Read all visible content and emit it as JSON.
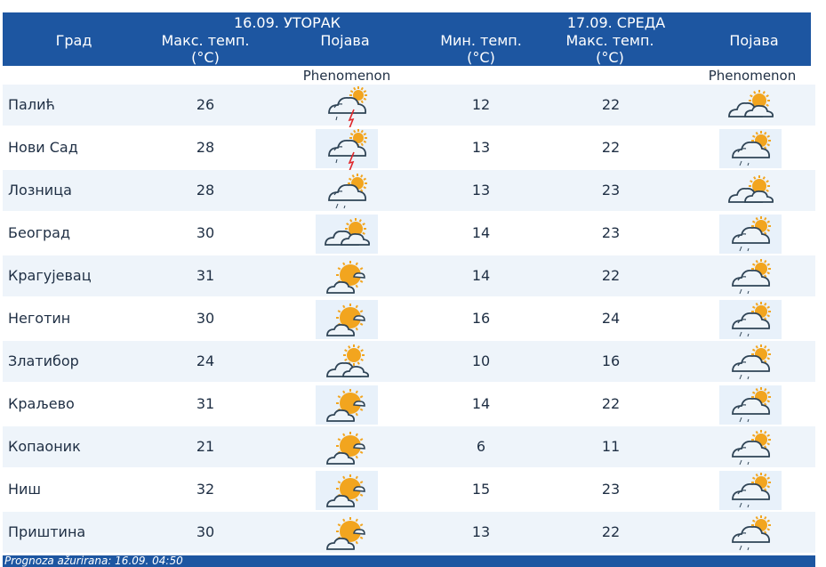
{
  "header": {
    "col_city": "Град",
    "day1_date": "16.09. УТОРАК",
    "day2_date": "17.09. СРЕДА",
    "max_temp": "Макс. темп.",
    "min_temp": "Мин. темп.",
    "unit": "(°C)",
    "phenomenon": "Појава",
    "phenomenon_en": "Phenomenon"
  },
  "rows": [
    {
      "city": "Палић",
      "d1_max": "26",
      "d1_icon": "thunderstorm-icon",
      "d2_min": "12",
      "d2_max": "22",
      "d2_icon": "partly-cloudy-icon"
    },
    {
      "city": "Нови Сад",
      "d1_max": "28",
      "d1_icon": "thunderstorm-icon",
      "d2_min": "13",
      "d2_max": "22",
      "d2_icon": "cloudy-rain-icon"
    },
    {
      "city": "Лозница",
      "d1_max": "28",
      "d1_icon": "cloudy-rain-icon",
      "d2_min": "13",
      "d2_max": "23",
      "d2_icon": "partly-cloudy-icon"
    },
    {
      "city": "Београд",
      "d1_max": "30",
      "d1_icon": "partly-cloudy-icon",
      "d2_min": "14",
      "d2_max": "23",
      "d2_icon": "cloudy-rain-icon"
    },
    {
      "city": "Крагујевац",
      "d1_max": "31",
      "d1_icon": "sunny-cloudy-icon",
      "d2_min": "14",
      "d2_max": "22",
      "d2_icon": "cloudy-rain-icon"
    },
    {
      "city": "Неготин",
      "d1_max": "30",
      "d1_icon": "sunny-cloudy-icon",
      "d2_min": "16",
      "d2_max": "24",
      "d2_icon": "cloudy-rain-icon"
    },
    {
      "city": "Златибор",
      "d1_max": "24",
      "d1_icon": "cloud-sun-icon",
      "d2_min": "10",
      "d2_max": "16",
      "d2_icon": "cloudy-rain-icon"
    },
    {
      "city": "Краљево",
      "d1_max": "31",
      "d1_icon": "sunny-cloudy-icon",
      "d2_min": "14",
      "d2_max": "22",
      "d2_icon": "cloudy-rain-icon"
    },
    {
      "city": "Копаоник",
      "d1_max": "21",
      "d1_icon": "sunny-cloudy-icon",
      "d2_min": "6",
      "d2_max": "11",
      "d2_icon": "cloudy-rain-icon"
    },
    {
      "city": "Ниш",
      "d1_max": "32",
      "d1_icon": "sunny-cloudy-icon",
      "d2_min": "15",
      "d2_max": "23",
      "d2_icon": "cloudy-rain-icon"
    },
    {
      "city": "Приштина",
      "d1_max": "30",
      "d1_icon": "sunny-cloudy-icon",
      "d2_min": "13",
      "d2_max": "22",
      "d2_icon": "cloudy-rain-icon"
    }
  ],
  "footer": {
    "updated": "Prognoza ažurirana:  16.09. 04:50"
  },
  "colors": {
    "header_bg": "#1d56a1",
    "row_alt": "#eef4fa",
    "sun": "#f2a51f",
    "cloud": "#e9f0f6",
    "bolt": "#e0262a"
  }
}
